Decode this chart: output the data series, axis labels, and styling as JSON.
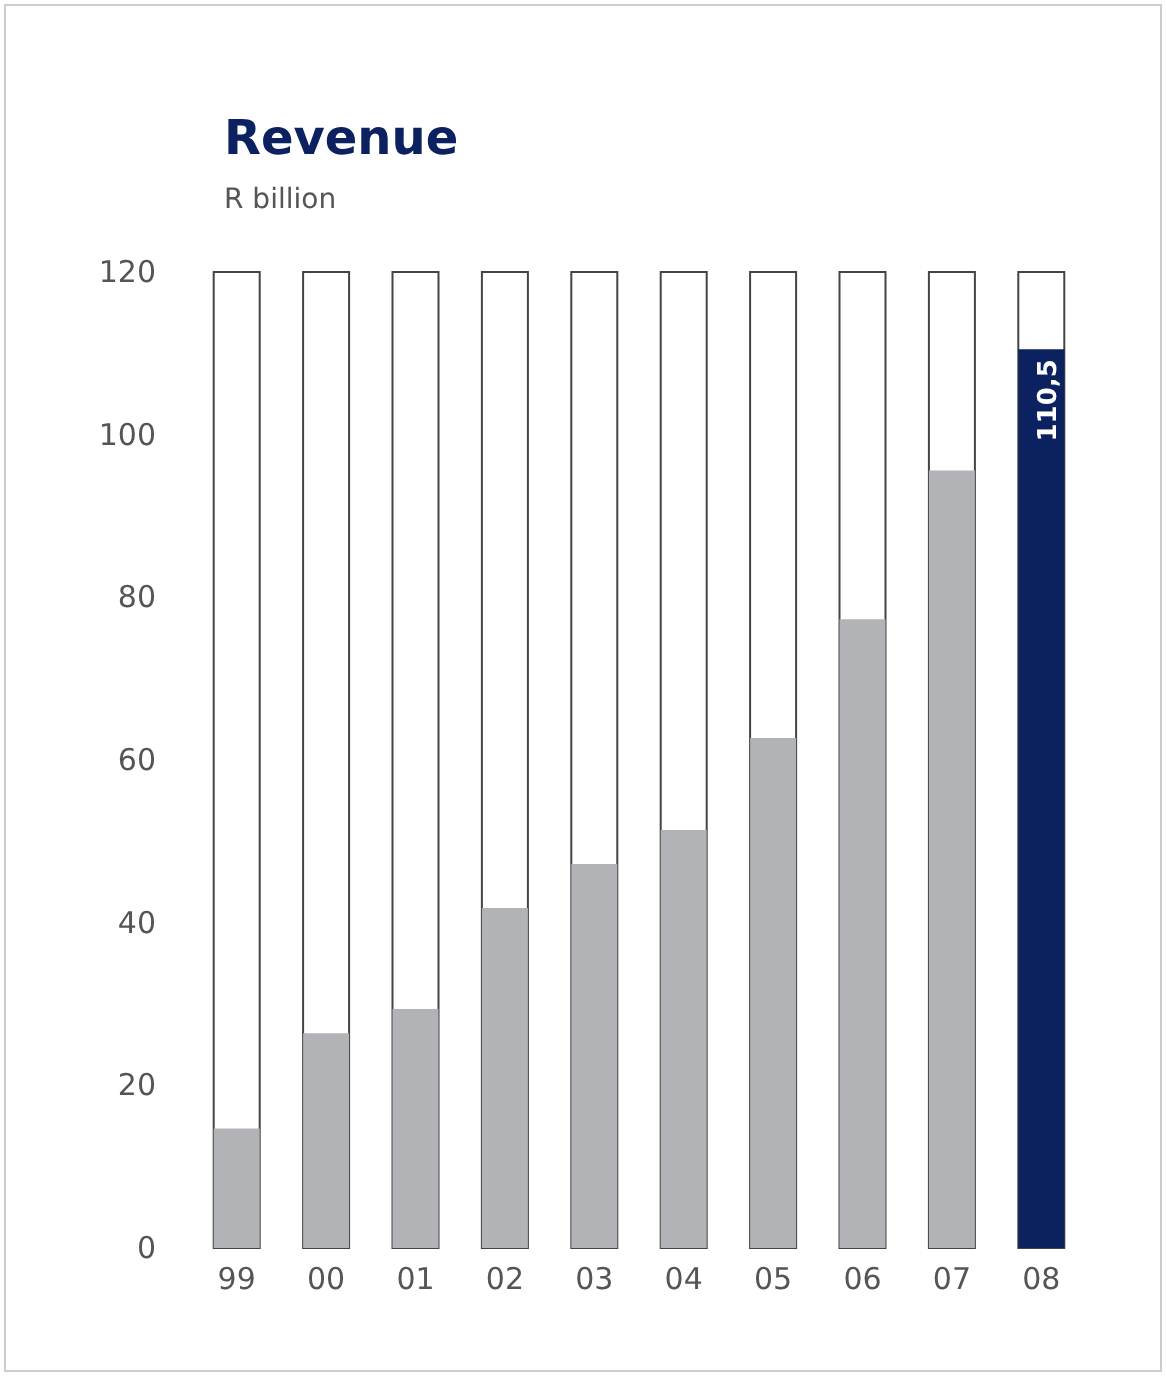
{
  "chart_data": {
    "type": "bar",
    "title": "Revenue",
    "subtitle": "R billion",
    "categories": [
      "99",
      "00",
      "01",
      "02",
      "03",
      "04",
      "05",
      "06",
      "07",
      "08"
    ],
    "values": [
      14.7,
      26.4,
      29.4,
      41.8,
      47.2,
      51.4,
      62.7,
      77.3,
      95.6,
      110.5
    ],
    "colors": [
      "#b1b3b6",
      "#b1b3b6",
      "#b1b3b6",
      "#b1b3b6",
      "#b1b3b6",
      "#b1b3b6",
      "#b1b3b6",
      "#b1b3b6",
      "#b1b3b6",
      "#0b2160"
    ],
    "value_labels": [
      null,
      null,
      null,
      null,
      null,
      null,
      null,
      null,
      null,
      "110,5"
    ],
    "ylim": [
      0,
      120
    ],
    "yticks": [
      0,
      20,
      40,
      60,
      80,
      100,
      120
    ]
  }
}
